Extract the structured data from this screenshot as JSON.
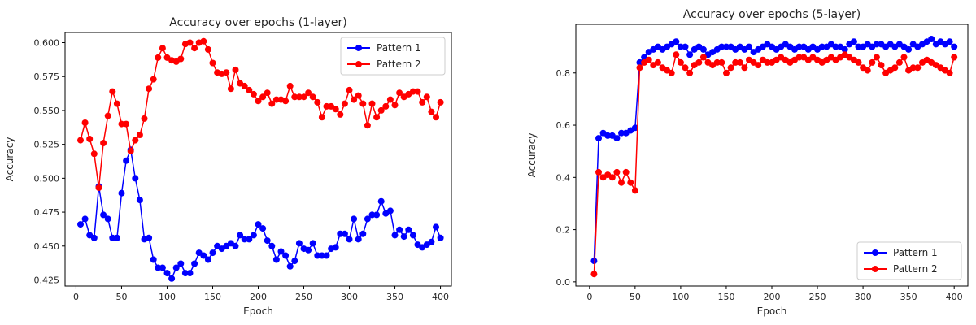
{
  "chart_data": [
    {
      "type": "line",
      "title": "Accuracy over epochs (1-layer)",
      "xlabel": "Epoch",
      "ylabel": "Accuracy",
      "xlim": [
        -12,
        412
      ],
      "ylim": [
        0.4205,
        0.6075
      ],
      "xticks": [
        0,
        50,
        100,
        150,
        200,
        250,
        300,
        350,
        400
      ],
      "yticks": [
        0.425,
        0.45,
        0.475,
        0.5,
        0.525,
        0.55,
        0.575,
        0.6
      ],
      "ytick_labels": [
        "0.425",
        "0.450",
        "0.475",
        "0.500",
        "0.525",
        "0.550",
        "0.575",
        "0.600"
      ],
      "grid": false,
      "legend_position": "top-right",
      "series": [
        {
          "name": "Pattern 1",
          "color": "#0000ff",
          "x": [
            5,
            10,
            15,
            20,
            25,
            30,
            35,
            40,
            45,
            50,
            55,
            60,
            65,
            70,
            75,
            80,
            85,
            90,
            95,
            100,
            105,
            110,
            115,
            120,
            125,
            130,
            135,
            140,
            145,
            150,
            155,
            160,
            165,
            170,
            175,
            180,
            185,
            190,
            195,
            200,
            205,
            210,
            215,
            220,
            225,
            230,
            235,
            240,
            245,
            250,
            255,
            260,
            265,
            270,
            275,
            280,
            285,
            290,
            295,
            300,
            305,
            310,
            315,
            320,
            325,
            330,
            335,
            340,
            345,
            350,
            355,
            360,
            365,
            370,
            375,
            380,
            385,
            390,
            395,
            400
          ],
          "values": [
            0.466,
            0.47,
            0.458,
            0.456,
            0.494,
            0.473,
            0.47,
            0.456,
            0.456,
            0.489,
            0.513,
            0.521,
            0.5,
            0.484,
            0.455,
            0.456,
            0.44,
            0.434,
            0.434,
            0.43,
            0.426,
            0.434,
            0.437,
            0.43,
            0.43,
            0.437,
            0.445,
            0.443,
            0.44,
            0.445,
            0.45,
            0.448,
            0.45,
            0.452,
            0.45,
            0.458,
            0.455,
            0.455,
            0.458,
            0.466,
            0.463,
            0.454,
            0.45,
            0.44,
            0.446,
            0.443,
            0.435,
            0.439,
            0.452,
            0.448,
            0.447,
            0.452,
            0.443,
            0.443,
            0.443,
            0.448,
            0.449,
            0.459,
            0.459,
            0.455,
            0.47,
            0.455,
            0.459,
            0.47,
            0.473,
            0.473,
            0.483,
            0.474,
            0.476,
            0.458,
            0.462,
            0.457,
            0.462,
            0.458,
            0.451,
            0.449,
            0.451,
            0.453,
            0.464,
            0.456
          ]
        },
        {
          "name": "Pattern 2",
          "color": "#ff0000",
          "x": [
            5,
            10,
            15,
            20,
            25,
            30,
            35,
            40,
            45,
            50,
            55,
            60,
            65,
            70,
            75,
            80,
            85,
            90,
            95,
            100,
            105,
            110,
            115,
            120,
            125,
            130,
            135,
            140,
            145,
            150,
            155,
            160,
            165,
            170,
            175,
            180,
            185,
            190,
            195,
            200,
            205,
            210,
            215,
            220,
            225,
            230,
            235,
            240,
            245,
            250,
            255,
            260,
            265,
            270,
            275,
            280,
            285,
            290,
            295,
            300,
            305,
            310,
            315,
            320,
            325,
            330,
            335,
            340,
            345,
            350,
            355,
            360,
            365,
            370,
            375,
            380,
            385,
            390,
            395,
            400
          ],
          "values": [
            0.528,
            0.541,
            0.529,
            0.518,
            0.493,
            0.526,
            0.546,
            0.564,
            0.555,
            0.54,
            0.54,
            0.52,
            0.528,
            0.532,
            0.544,
            0.566,
            0.573,
            0.589,
            0.596,
            0.589,
            0.587,
            0.586,
            0.588,
            0.599,
            0.6,
            0.596,
            0.6,
            0.601,
            0.595,
            0.585,
            0.578,
            0.577,
            0.578,
            0.566,
            0.58,
            0.57,
            0.568,
            0.565,
            0.562,
            0.557,
            0.56,
            0.563,
            0.555,
            0.558,
            0.558,
            0.557,
            0.568,
            0.56,
            0.56,
            0.56,
            0.563,
            0.56,
            0.556,
            0.545,
            0.553,
            0.553,
            0.551,
            0.547,
            0.555,
            0.565,
            0.558,
            0.561,
            0.555,
            0.539,
            0.555,
            0.545,
            0.55,
            0.553,
            0.558,
            0.554,
            0.563,
            0.56,
            0.562,
            0.564,
            0.564,
            0.556,
            0.56,
            0.549,
            0.545,
            0.556
          ]
        }
      ]
    },
    {
      "type": "line",
      "title": "Accuracy over epochs (5-layer)",
      "xlabel": "Epoch",
      "ylabel": "Accuracy",
      "xlim": [
        -15,
        415
      ],
      "ylim": [
        -0.016,
        0.986
      ],
      "xticks": [
        0,
        50,
        100,
        150,
        200,
        250,
        300,
        350,
        400
      ],
      "yticks": [
        0.0,
        0.2,
        0.4,
        0.6,
        0.8
      ],
      "ytick_labels": [
        "0.0",
        "0.2",
        "0.4",
        "0.6",
        "0.8"
      ],
      "grid": false,
      "legend_position": "bottom-right",
      "series": [
        {
          "name": "Pattern 1",
          "color": "#0000ff",
          "x": [
            5,
            10,
            15,
            20,
            25,
            30,
            35,
            40,
            45,
            50,
            55,
            60,
            65,
            70,
            75,
            80,
            85,
            90,
            95,
            100,
            105,
            110,
            115,
            120,
            125,
            130,
            135,
            140,
            145,
            150,
            155,
            160,
            165,
            170,
            175,
            180,
            185,
            190,
            195,
            200,
            205,
            210,
            215,
            220,
            225,
            230,
            235,
            240,
            245,
            250,
            255,
            260,
            265,
            270,
            275,
            280,
            285,
            290,
            295,
            300,
            305,
            310,
            315,
            320,
            325,
            330,
            335,
            340,
            345,
            350,
            355,
            360,
            365,
            370,
            375,
            380,
            385,
            390,
            395,
            400
          ],
          "values": [
            0.08,
            0.55,
            0.57,
            0.56,
            0.56,
            0.55,
            0.57,
            0.57,
            0.58,
            0.59,
            0.84,
            0.86,
            0.88,
            0.89,
            0.9,
            0.89,
            0.9,
            0.91,
            0.92,
            0.9,
            0.9,
            0.87,
            0.89,
            0.9,
            0.89,
            0.87,
            0.88,
            0.89,
            0.9,
            0.9,
            0.9,
            0.89,
            0.9,
            0.89,
            0.9,
            0.88,
            0.89,
            0.9,
            0.91,
            0.9,
            0.89,
            0.9,
            0.91,
            0.9,
            0.89,
            0.9,
            0.9,
            0.89,
            0.9,
            0.89,
            0.9,
            0.9,
            0.91,
            0.9,
            0.9,
            0.89,
            0.91,
            0.92,
            0.9,
            0.9,
            0.91,
            0.9,
            0.91,
            0.91,
            0.9,
            0.91,
            0.9,
            0.91,
            0.9,
            0.89,
            0.91,
            0.9,
            0.91,
            0.92,
            0.93,
            0.91,
            0.92,
            0.91,
            0.92,
            0.9
          ]
        },
        {
          "name": "Pattern 2",
          "color": "#ff0000",
          "x": [
            5,
            10,
            15,
            20,
            25,
            30,
            35,
            40,
            45,
            50,
            55,
            60,
            65,
            70,
            75,
            80,
            85,
            90,
            95,
            100,
            105,
            110,
            115,
            120,
            125,
            130,
            135,
            140,
            145,
            150,
            155,
            160,
            165,
            170,
            175,
            180,
            185,
            190,
            195,
            200,
            205,
            210,
            215,
            220,
            225,
            230,
            235,
            240,
            245,
            250,
            255,
            260,
            265,
            270,
            275,
            280,
            285,
            290,
            295,
            300,
            305,
            310,
            315,
            320,
            325,
            330,
            335,
            340,
            345,
            350,
            355,
            360,
            365,
            370,
            375,
            380,
            385,
            390,
            395,
            400
          ],
          "values": [
            0.03,
            0.42,
            0.4,
            0.41,
            0.4,
            0.42,
            0.38,
            0.42,
            0.38,
            0.35,
            0.82,
            0.84,
            0.85,
            0.83,
            0.84,
            0.82,
            0.81,
            0.8,
            0.87,
            0.84,
            0.82,
            0.8,
            0.83,
            0.84,
            0.86,
            0.84,
            0.83,
            0.84,
            0.84,
            0.8,
            0.82,
            0.84,
            0.84,
            0.82,
            0.85,
            0.84,
            0.83,
            0.85,
            0.84,
            0.84,
            0.85,
            0.86,
            0.85,
            0.84,
            0.85,
            0.86,
            0.86,
            0.85,
            0.86,
            0.85,
            0.84,
            0.85,
            0.86,
            0.85,
            0.86,
            0.87,
            0.86,
            0.85,
            0.84,
            0.82,
            0.81,
            0.84,
            0.86,
            0.83,
            0.8,
            0.81,
            0.82,
            0.84,
            0.86,
            0.81,
            0.82,
            0.82,
            0.84,
            0.85,
            0.84,
            0.83,
            0.82,
            0.81,
            0.8,
            0.86
          ]
        }
      ]
    }
  ]
}
